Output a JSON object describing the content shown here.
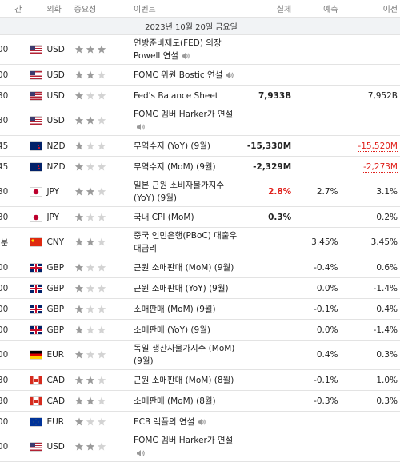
{
  "header": {
    "columns": [
      "간",
      "외화",
      "중요성",
      "이벤트",
      "실제",
      "예측",
      "이전"
    ]
  },
  "date": "2023년 10월 20일 금요일",
  "rows": [
    {
      "time": "00",
      "currency": "USD",
      "importance": 3,
      "event": "연방준비제도(FED) 의장 Powell 연설",
      "speech": true
    },
    {
      "time": "00",
      "currency": "USD",
      "importance": 2,
      "event": "FOMC 위원 Bostic 연설",
      "speech": true
    },
    {
      "time": "30",
      "currency": "USD",
      "importance": 1,
      "event": "Fed's Balance Sheet",
      "actual": "7,933B",
      "previous": "7,952B"
    },
    {
      "time": "30",
      "currency": "USD",
      "importance": 2,
      "event": "FOMC 멤버 Harker가 연설",
      "speech": true
    },
    {
      "time": "45",
      "currency": "NZD",
      "importance": 1,
      "event": "무역수지 (YoY) (9월)",
      "actual": "-15,330M",
      "previous": "-15,520M",
      "previous_color": "#e0201b"
    },
    {
      "time": "45",
      "currency": "NZD",
      "importance": 1,
      "event": "무역수지 (MoM) (9월)",
      "actual": "-2,329M",
      "previous": "-2,273M",
      "previous_color": "#e0201b"
    },
    {
      "time": "30",
      "currency": "JPY",
      "importance": 2,
      "event": "일본 근원 소비자물가지수 (YoY) (9월)",
      "actual": "2.8%",
      "actual_color": "#e0201b",
      "forecast": "2.7%",
      "previous": "3.1%"
    },
    {
      "time": "30",
      "currency": "JPY",
      "importance": 1,
      "event": "국내 CPI (MoM)",
      "actual": "0.3%",
      "previous": "0.2%"
    },
    {
      "time": "분",
      "currency": "CNY",
      "importance": 2,
      "event": "중국 인민은행(PBoC) 대출우대금리",
      "forecast": "3.45%",
      "previous": "3.45%"
    },
    {
      "time": "00",
      "currency": "GBP",
      "importance": 1,
      "event": "근원 소매판매 (MoM) (9월)",
      "forecast": "-0.4%",
      "previous": "0.6%"
    },
    {
      "time": "00",
      "currency": "GBP",
      "importance": 1,
      "event": "근원 소매판매 (YoY) (9월)",
      "forecast": "0.0%",
      "previous": "-1.4%"
    },
    {
      "time": "00",
      "currency": "GBP",
      "importance": 1,
      "event": "소매판매 (MoM) (9월)",
      "forecast": "-0.1%",
      "previous": "0.4%"
    },
    {
      "time": "00",
      "currency": "GBP",
      "importance": 1,
      "event": "소매판매 (YoY) (9월)",
      "forecast": "0.0%",
      "previous": "-1.4%"
    },
    {
      "time": "00",
      "currency": "EUR",
      "importance": 1,
      "event": "독일 생산자물가지수 (MoM) (9월)",
      "forecast": "0.4%",
      "previous": "0.3%"
    },
    {
      "time": "30",
      "currency": "CAD",
      "importance": 2,
      "event": "근원 소매판매 (MoM) (8월)",
      "forecast": "-0.1%",
      "previous": "1.0%"
    },
    {
      "time": "30",
      "currency": "CAD",
      "importance": 2,
      "event": "소매판매 (MoM) (8월)",
      "forecast": "-0.3%",
      "previous": "0.3%"
    },
    {
      "time": "00",
      "currency": "EUR",
      "importance": 1,
      "event": "ECB 랙플의 연설",
      "speech": true
    },
    {
      "time": "00",
      "currency": "USD",
      "importance": 2,
      "event": "FOMC 멤버 Harker가 연설",
      "speech": true
    }
  ]
}
